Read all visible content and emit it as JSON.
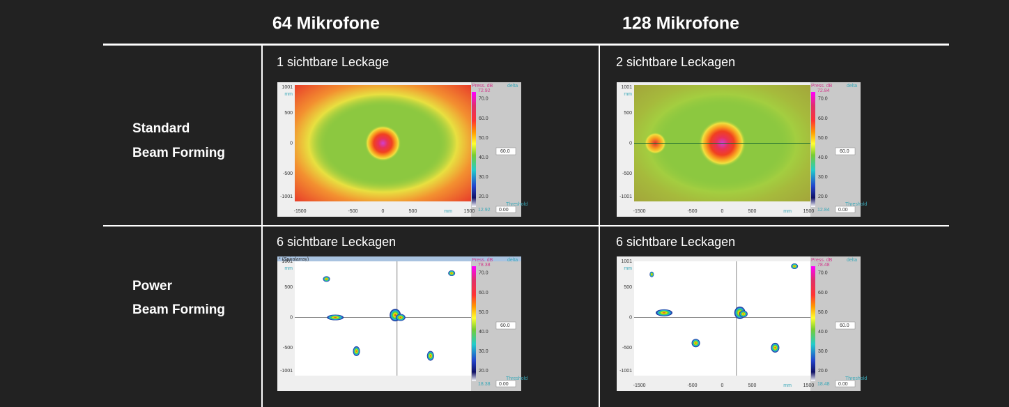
{
  "header": {
    "columns": [
      "64 Mikrofone",
      "128 Mikrofone"
    ]
  },
  "rows": [
    {
      "label_lines": [
        "Standard",
        "Beam Forming"
      ],
      "cells": [
        {
          "caption": "1 sichtbare Leckage",
          "plot": {
            "y_ticks": [
              "1001",
              "mm",
              "500",
              "0",
              "-500",
              "-1001"
            ],
            "x_ticks": [
              "-1500",
              "-500",
              "0",
              "500",
              "mm",
              "1500"
            ],
            "colorbar_title": "Press. dB",
            "delta": "delta",
            "max": "72.92",
            "labels": [
              "70.0",
              "60.0",
              "50.0",
              "40.0",
              "30.0",
              "20.0"
            ],
            "min": "12.92",
            "threshold_title": "Threshold",
            "threshold": "0.00",
            "box": "60.0"
          }
        },
        {
          "caption": "2 sichtbare Leckagen",
          "plot": {
            "y_ticks": [
              "1001",
              "mm",
              "500",
              "0",
              "-500",
              "-1001"
            ],
            "x_ticks": [
              "-1500",
              "-500",
              "0",
              "500",
              "mm",
              "1500"
            ],
            "colorbar_title": "Press. dB",
            "delta": "delta",
            "max": "72.84",
            "labels": [
              "70.0",
              "60.0",
              "50.0",
              "40.0",
              "30.0",
              "20.0"
            ],
            "min": "12.84",
            "threshold_title": "Threshold",
            "threshold": "0.00",
            "box": "60.0"
          }
        }
      ]
    },
    {
      "label_lines": [
        "Power",
        "Beam Forming"
      ],
      "cells": [
        {
          "caption": "6 sichtbare Leckagen",
          "plot": {
            "window_title": "* (Spiralarray)",
            "y_ticks": [
              "1001",
              "mm",
              "500",
              "0",
              "-500",
              "-1001"
            ],
            "colorbar_title": "Press. dB",
            "delta": "delta",
            "max": "78.38",
            "labels": [
              "70.0",
              "60.0",
              "50.0",
              "40.0",
              "30.0",
              "20.0"
            ],
            "min": "18.38",
            "threshold_title": "Threshold",
            "threshold": "0.00",
            "box": "60.0"
          }
        },
        {
          "caption": "6 sichtbare Leckagen",
          "plot": {
            "y_ticks": [
              "1001",
              "mm",
              "500",
              "0",
              "-500",
              "-1001"
            ],
            "x_ticks": [
              "-1500",
              "-500",
              "0",
              "500",
              "mm",
              "1500"
            ],
            "colorbar_title": "Press. dB",
            "delta": "delta",
            "max": "78.48",
            "labels": [
              "70.0",
              "60.0",
              "50.0",
              "40.0",
              "30.0",
              "20.0"
            ],
            "min": "18.48",
            "threshold_title": "Threshold",
            "threshold": "0.00",
            "box": "60.0"
          }
        }
      ]
    }
  ]
}
